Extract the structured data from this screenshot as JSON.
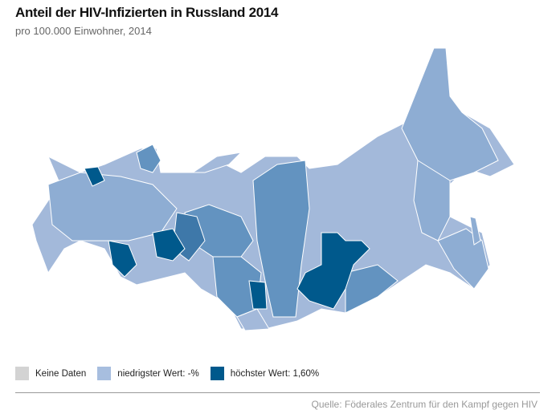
{
  "header": {
    "title": "Anteil der HIV-Infizierten in Russland 2014",
    "subtitle": "pro 100.000 Einwohner, 2014"
  },
  "legend": [
    {
      "label": "Keine Daten",
      "color": "#d3d3d3"
    },
    {
      "label": "niedrigster Wert: -%",
      "color": "#a7bedf"
    },
    {
      "label": "höchster Wert: 1,60%",
      "color": "#00598c"
    }
  ],
  "source": "Quelle: Föderales Zentrum für den Kampf gegen HIV",
  "colors": {
    "light": "#a3b9da",
    "mid": "#8eadd3",
    "medium": "#6393c0",
    "dark": "#3e78a9",
    "darkest": "#00598c"
  }
}
